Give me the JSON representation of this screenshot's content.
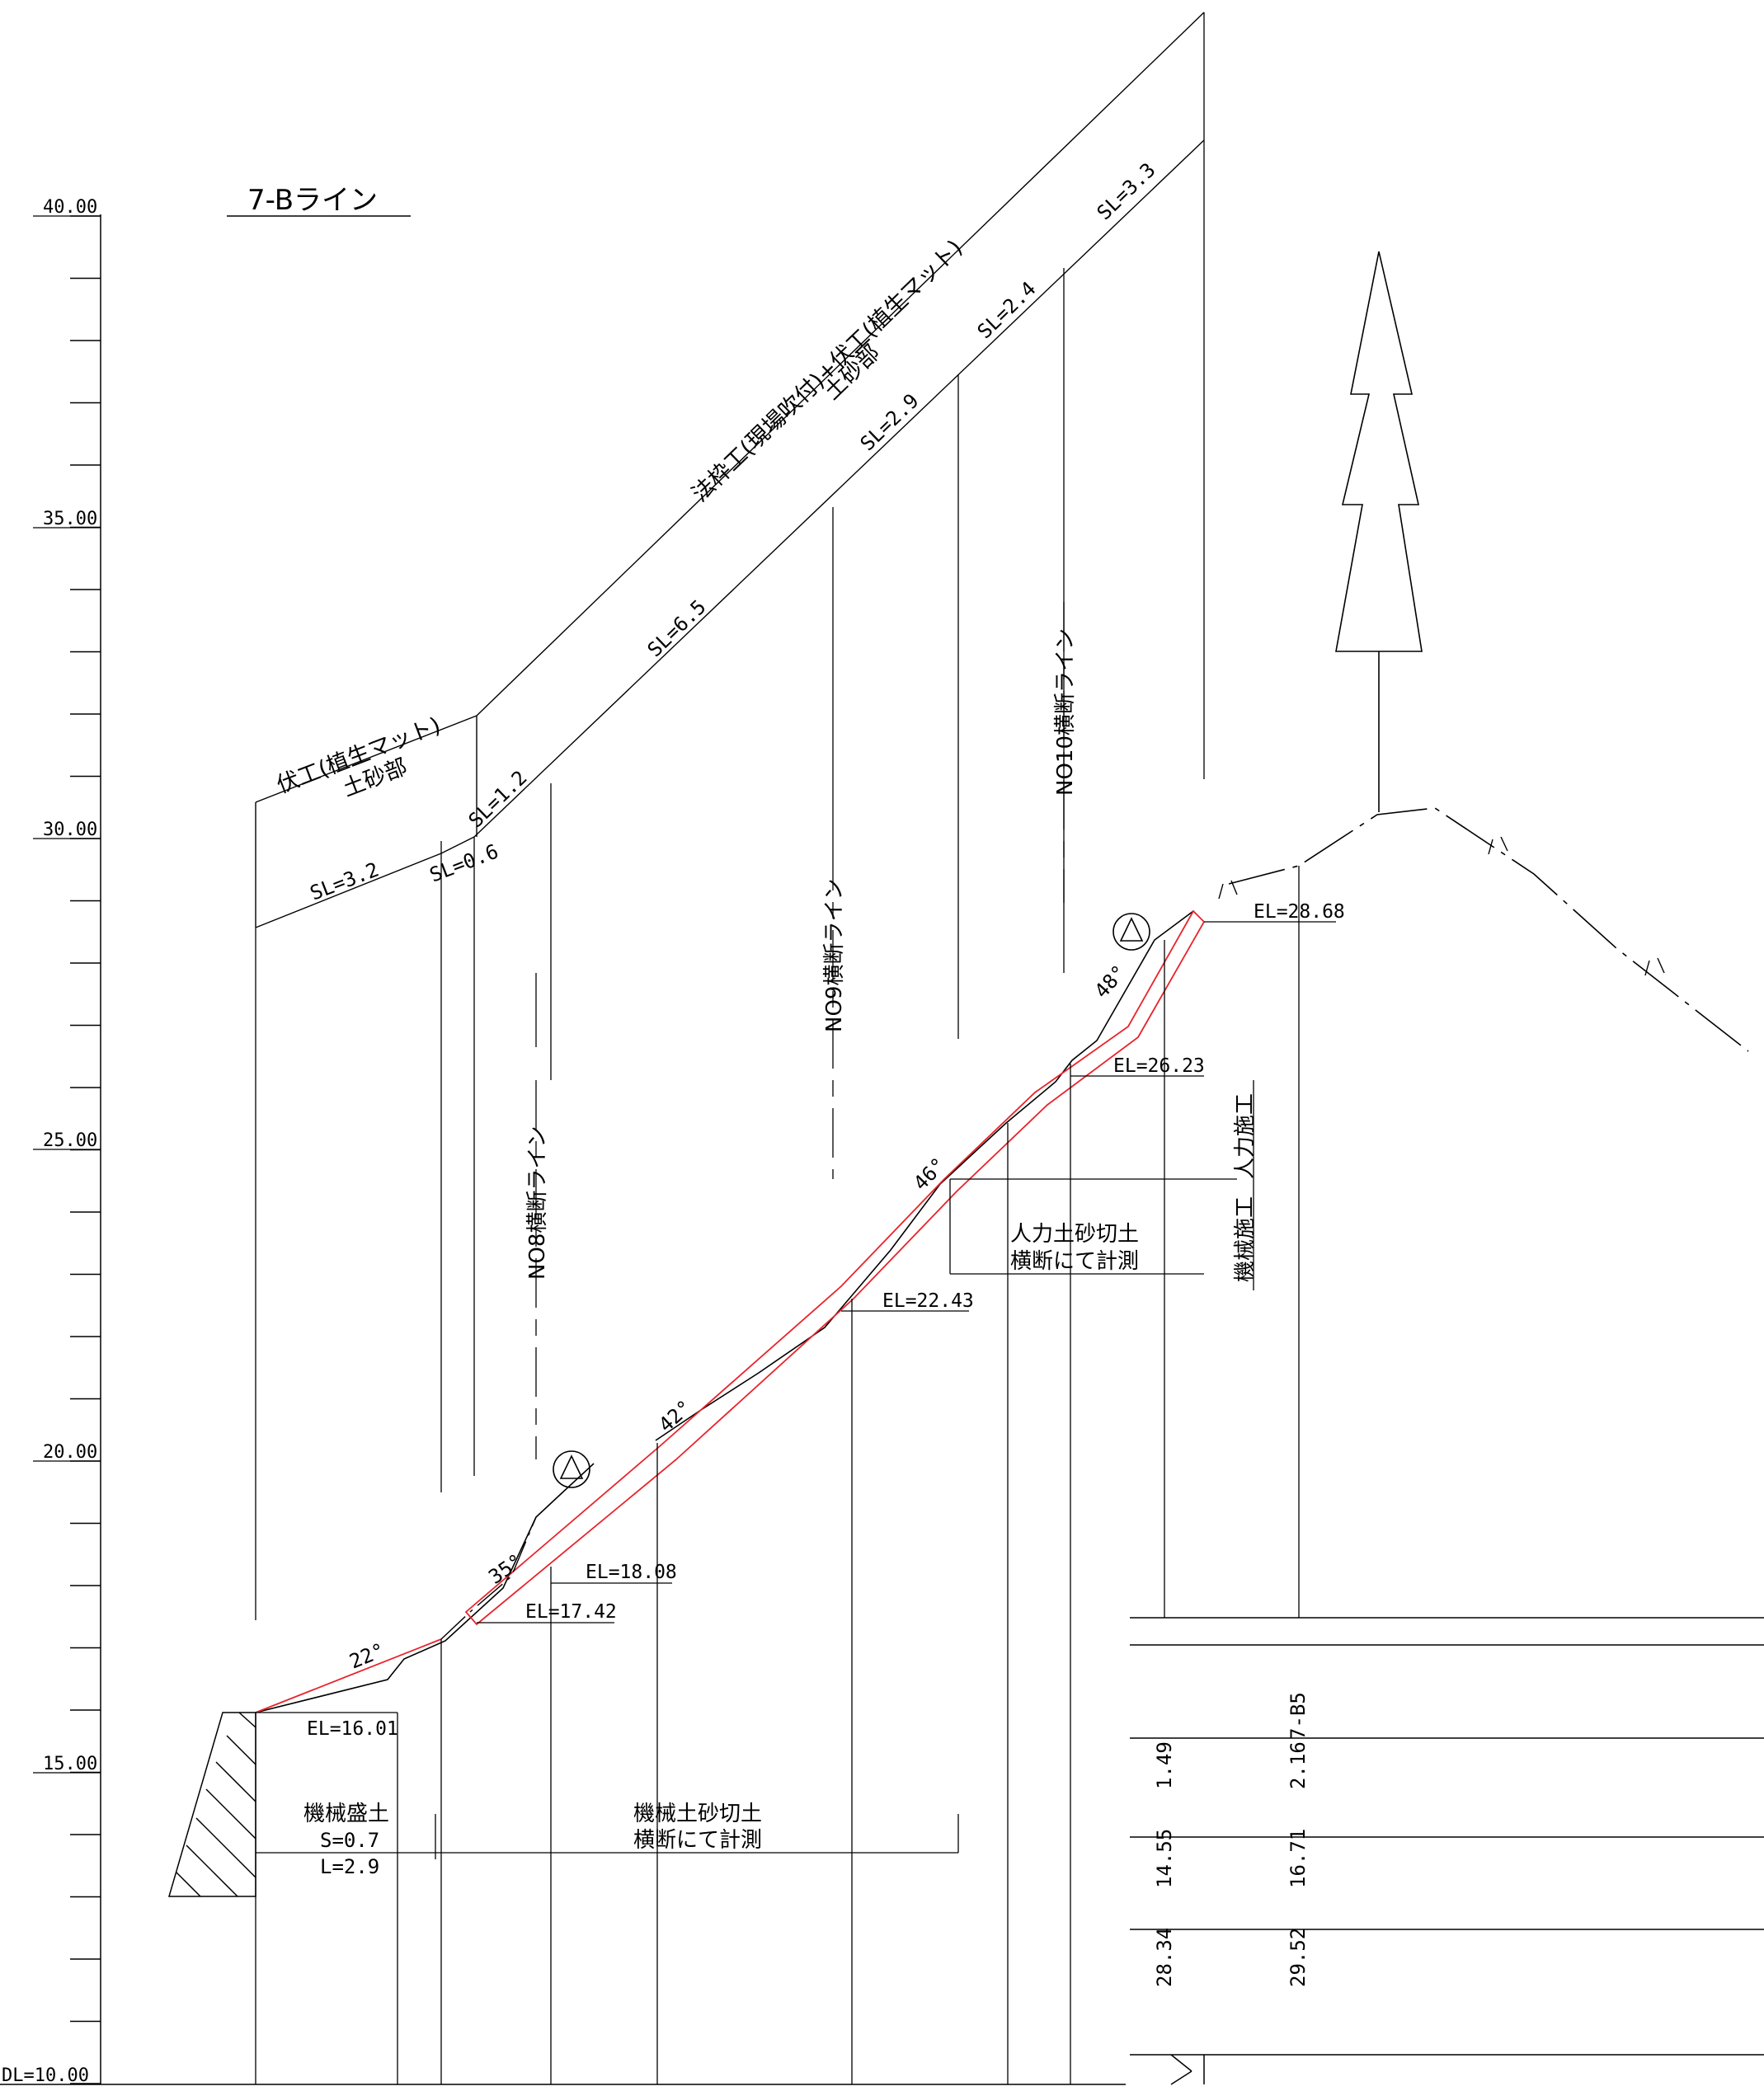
{
  "drawing": {
    "title": "7-Bライン"
  },
  "axis": {
    "labels": [
      "40.00",
      "35.00",
      "30.00",
      "25.00",
      "20.00",
      "15.00",
      "DL=10.00"
    ]
  },
  "top_labels": {
    "main_line1": "法枠工(現場吹付)+伏工(植生マット)",
    "main_line2": "土砂部",
    "left_line1": "伏工(植生マット)",
    "left_line2": "土砂部"
  },
  "slopes": {
    "sl_3_3": "SL=3.3",
    "sl_2_4": "SL=2.4",
    "sl_2_9": "SL=2.9",
    "sl_6_5": "SL=6.5",
    "sl_1_2": "SL=1.2",
    "sl_0_6": "SL=0.6",
    "sl_3_2": "SL=3.2"
  },
  "section_lines": {
    "no10": "NO10横断ライン",
    "no9": "NO9横断ライン",
    "no8": "NO8横断ライン"
  },
  "elevations": {
    "el_28_68": "EL=28.68",
    "el_26_23": "EL=26.23",
    "el_22_43": "EL=22.43",
    "el_18_08": "EL=18.08",
    "el_17_42": "EL=17.42",
    "el_16_01": "EL=16.01"
  },
  "angles": {
    "a48": "48°",
    "a46": "46°",
    "a42": "42°",
    "a35": "35°",
    "a22": "22°"
  },
  "notes": {
    "jinryoku_sekou": "人力施工",
    "kikai_sekou": "機械施工",
    "jinryoku_cut_1": "人力土砂切土",
    "jinryoku_cut_2": "横断にて計測",
    "kikai_fill_1": "機械盛土",
    "kikai_fill_2": "S=0.7",
    "kikai_fill_3": "L=2.9",
    "kikai_cut_1": "機械土砂切土",
    "kikai_cut_2": "横断にて計測"
  },
  "table": {
    "name": "7-B5",
    "col1": [
      "1.49",
      "14.55",
      "28.34"
    ],
    "col2": [
      "2.16",
      "16.71",
      "29.52"
    ]
  },
  "colors": {
    "line": "#000000",
    "red": "#e8242b"
  }
}
